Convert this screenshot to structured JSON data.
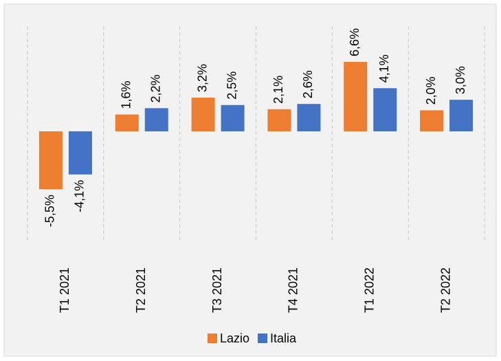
{
  "chart_data": {
    "type": "bar",
    "categories": [
      "T1 2021",
      "T2 2021",
      "T3 2021",
      "T4 2021",
      "T1 2022",
      "T2 2022"
    ],
    "series": [
      {
        "name": "Lazio",
        "color": "#ED7D31",
        "values": [
          -5.5,
          1.6,
          3.2,
          2.1,
          6.6,
          2.0
        ],
        "value_labels": [
          "-5,5%",
          "1,6%",
          "3,2%",
          "2,1%",
          "6,6%",
          "2,0%"
        ]
      },
      {
        "name": "Italia",
        "color": "#4472C4",
        "values": [
          -4.1,
          2.2,
          2.5,
          2.6,
          4.1,
          3.0
        ],
        "value_labels": [
          "-4,1%",
          "2,2%",
          "2,5%",
          "2,6%",
          "4,1%",
          "3,0%"
        ]
      }
    ],
    "legend": "bottom"
  }
}
